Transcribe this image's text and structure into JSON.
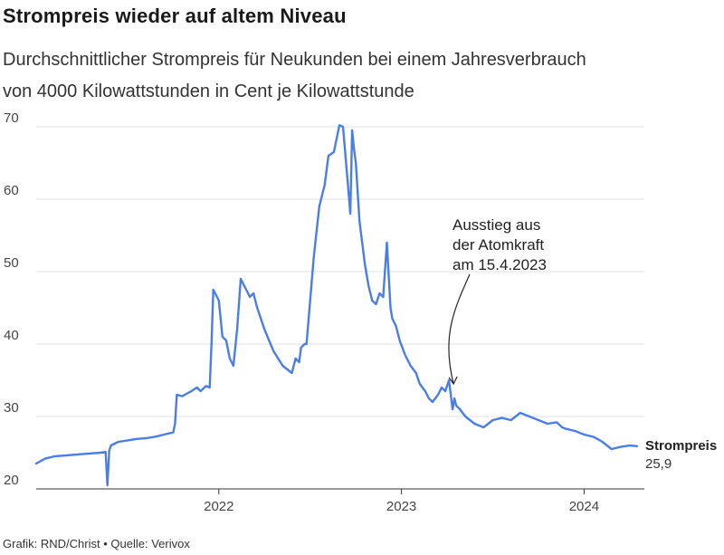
{
  "chart_data": {
    "type": "line",
    "title": "Strompreis wieder auf altem Niveau",
    "subtitle_lines": [
      "Durchschnittlicher Strompreis für Neukunden bei einem Jahresverbrauch",
      "von 4000 Kilowattstunden in Cent je Kilowattstunde"
    ],
    "xlabel": "",
    "ylabel": "",
    "xlim": [
      2021.0,
      2024.33
    ],
    "ylim": [
      20,
      70
    ],
    "y_ticks": [
      "20",
      "30",
      "40",
      "50",
      "60",
      "70"
    ],
    "x_ticks": [
      {
        "value": 2022.0,
        "label": "2022"
      },
      {
        "value": 2023.0,
        "label": "2023"
      },
      {
        "value": 2024.0,
        "label": "2024"
      }
    ],
    "grid": true,
    "series": [
      {
        "name": "Strompreis",
        "color": "#4a7ee6",
        "last_value_label": "25,9",
        "x": [
          2021.0,
          2021.05,
          2021.1,
          2021.15,
          2021.2,
          2021.25,
          2021.3,
          2021.35,
          2021.38,
          2021.39,
          2021.4,
          2021.41,
          2021.45,
          2021.5,
          2021.55,
          2021.6,
          2021.65,
          2021.7,
          2021.75,
          2021.76,
          2021.77,
          2021.8,
          2021.85,
          2021.88,
          2021.9,
          2021.93,
          2021.95,
          2021.96,
          2021.97,
          2021.98,
          2022.0,
          2022.02,
          2022.04,
          2022.06,
          2022.08,
          2022.1,
          2022.12,
          2022.15,
          2022.17,
          2022.19,
          2022.21,
          2022.25,
          2022.3,
          2022.35,
          2022.4,
          2022.42,
          2022.44,
          2022.45,
          2022.47,
          2022.48,
          2022.5,
          2022.52,
          2022.55,
          2022.58,
          2022.6,
          2022.63,
          2022.66,
          2022.68,
          2022.7,
          2022.72,
          2022.73,
          2022.74,
          2022.75,
          2022.76,
          2022.77,
          2022.78,
          2022.8,
          2022.82,
          2022.84,
          2022.86,
          2022.88,
          2022.9,
          2022.92,
          2022.94,
          2022.95,
          2022.97,
          2022.99,
          2023.02,
          2023.05,
          2023.08,
          2023.1,
          2023.13,
          2023.15,
          2023.17,
          2023.2,
          2023.22,
          2023.24,
          2023.26,
          2023.28,
          2023.29,
          2023.3,
          2023.32,
          2023.35,
          2023.4,
          2023.45,
          2023.5,
          2023.55,
          2023.6,
          2023.65,
          2023.7,
          2023.75,
          2023.8,
          2023.85,
          2023.88,
          2023.9,
          2023.95,
          2024.0,
          2024.05,
          2024.08,
          2024.1,
          2024.15,
          2024.2,
          2024.25,
          2024.29
        ],
        "values": [
          23.5,
          24.2,
          24.5,
          24.6,
          24.7,
          24.8,
          24.9,
          25.0,
          25.1,
          20.5,
          25.3,
          26.0,
          26.5,
          26.7,
          26.9,
          27.0,
          27.2,
          27.5,
          27.8,
          29.0,
          33.0,
          32.8,
          33.5,
          34.0,
          33.5,
          34.2,
          34.0,
          40.0,
          47.5,
          47.0,
          46.0,
          41.0,
          40.5,
          38.0,
          37.0,
          42.0,
          49.0,
          47.5,
          46.5,
          47.0,
          45.0,
          42.0,
          39.0,
          37.0,
          36.0,
          38.0,
          37.5,
          39.5,
          40.0,
          40.0,
          46.0,
          52.0,
          59.0,
          62.0,
          66.0,
          66.5,
          70.2,
          70.0,
          64.0,
          58.0,
          69.5,
          67.0,
          65.0,
          61.0,
          57.0,
          55.0,
          51.0,
          48.0,
          46.0,
          45.5,
          47.0,
          46.5,
          54.0,
          45.0,
          43.5,
          42.5,
          40.5,
          38.5,
          37.0,
          36.0,
          34.5,
          33.5,
          32.5,
          32.0,
          33.0,
          34.0,
          33.5,
          35.0,
          31.0,
          32.5,
          31.5,
          31.0,
          30.0,
          29.0,
          28.5,
          29.5,
          29.8,
          29.5,
          30.5,
          30.0,
          29.5,
          29.0,
          29.2,
          28.5,
          28.3,
          28.0,
          27.5,
          27.2,
          26.8,
          26.5,
          25.5,
          25.8,
          26.0,
          25.9
        ]
      }
    ],
    "annotations": [
      {
        "lines": [
          "Ausstieg aus",
          "der Atomkraft",
          "am 15.4.2023"
        ],
        "x": 2023.29,
        "y": 33.5
      }
    ],
    "source": "Grafik: RND/Christ • Quelle: Verivox"
  }
}
